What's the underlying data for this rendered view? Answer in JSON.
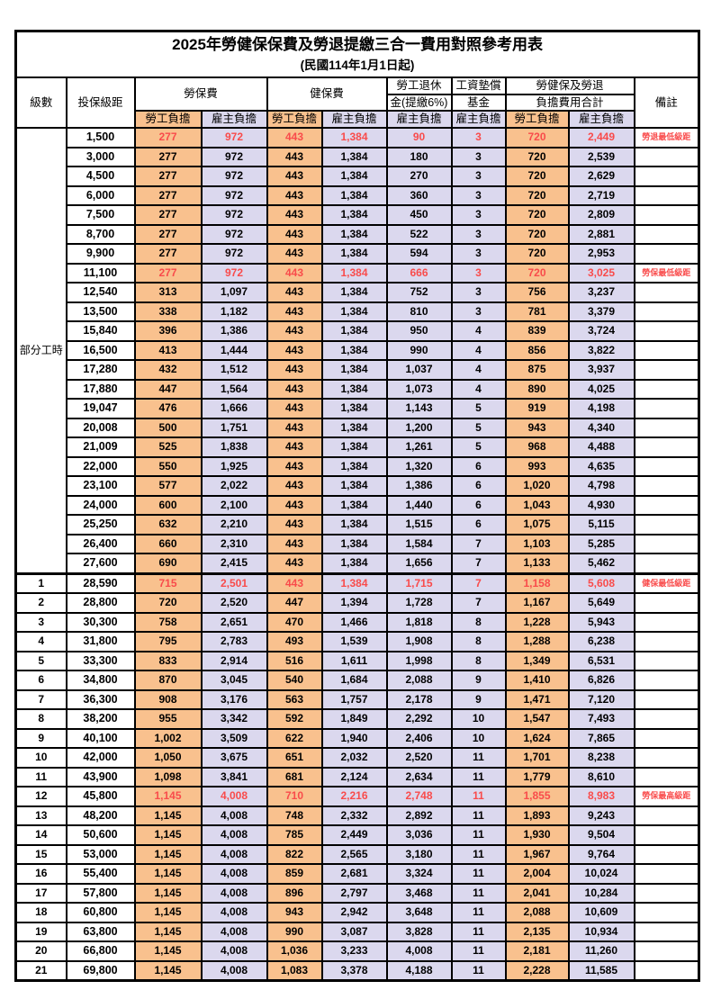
{
  "title": "2025年勞健保保費及勞退提繳三合一費用對照參考用表",
  "subtitle": "(民國114年1月1日起)",
  "header": {
    "level": "級數",
    "salary_bracket": "投保級距",
    "labor_insurance": "勞保費",
    "health_insurance": "健保費",
    "pension_line1": "勞工退休",
    "pension_line2": "金(提繳6%)",
    "wage_fund_line1": "工資墊償",
    "wage_fund_line2": "基金",
    "total_line1": "勞健保及勞退",
    "total_line2": "負擔費用合計",
    "employee_share": "勞工負擔",
    "employer_share": "雇主負擔",
    "remark": "備註"
  },
  "part_time_label": "部分工時",
  "colors": {
    "employee_bg": "#F9C18E",
    "employer_bg": "#DBD8EE",
    "highlight_text": "#F94B4B",
    "border": "#000000"
  },
  "column_keys": [
    "labor-employee",
    "labor-employer",
    "health-employee",
    "health-employer",
    "pension-employer",
    "wagefund-employer",
    "total-employee",
    "total-employer"
  ],
  "rows": [
    {
      "section": "part_time",
      "level": "",
      "salary": "1,500",
      "values": [
        "277",
        "972",
        "443",
        "1,384",
        "90",
        "3",
        "720",
        "2,449"
      ],
      "note": "勞退最低級距",
      "red": true
    },
    {
      "section": "part_time",
      "level": "",
      "salary": "3,000",
      "values": [
        "277",
        "972",
        "443",
        "1,384",
        "180",
        "3",
        "720",
        "2,539"
      ],
      "note": "",
      "red": false
    },
    {
      "section": "part_time",
      "level": "",
      "salary": "4,500",
      "values": [
        "277",
        "972",
        "443",
        "1,384",
        "270",
        "3",
        "720",
        "2,629"
      ],
      "note": "",
      "red": false
    },
    {
      "section": "part_time",
      "level": "",
      "salary": "6,000",
      "values": [
        "277",
        "972",
        "443",
        "1,384",
        "360",
        "3",
        "720",
        "2,719"
      ],
      "note": "",
      "red": false
    },
    {
      "section": "part_time",
      "level": "",
      "salary": "7,500",
      "values": [
        "277",
        "972",
        "443",
        "1,384",
        "450",
        "3",
        "720",
        "2,809"
      ],
      "note": "",
      "red": false
    },
    {
      "section": "part_time",
      "level": "",
      "salary": "8,700",
      "values": [
        "277",
        "972",
        "443",
        "1,384",
        "522",
        "3",
        "720",
        "2,881"
      ],
      "note": "",
      "red": false
    },
    {
      "section": "part_time",
      "level": "",
      "salary": "9,900",
      "values": [
        "277",
        "972",
        "443",
        "1,384",
        "594",
        "3",
        "720",
        "2,953"
      ],
      "note": "",
      "red": false
    },
    {
      "section": "part_time",
      "level": "",
      "salary": "11,100",
      "values": [
        "277",
        "972",
        "443",
        "1,384",
        "666",
        "3",
        "720",
        "3,025"
      ],
      "note": "勞保最低級距",
      "red": true
    },
    {
      "section": "part_time",
      "level": "",
      "salary": "12,540",
      "values": [
        "313",
        "1,097",
        "443",
        "1,384",
        "752",
        "3",
        "756",
        "3,237"
      ],
      "note": "",
      "red": false
    },
    {
      "section": "part_time",
      "level": "",
      "salary": "13,500",
      "values": [
        "338",
        "1,182",
        "443",
        "1,384",
        "810",
        "3",
        "781",
        "3,379"
      ],
      "note": "",
      "red": false
    },
    {
      "section": "part_time",
      "level": "",
      "salary": "15,840",
      "values": [
        "396",
        "1,386",
        "443",
        "1,384",
        "950",
        "4",
        "839",
        "3,724"
      ],
      "note": "",
      "red": false
    },
    {
      "section": "part_time",
      "level": "",
      "salary": "16,500",
      "values": [
        "413",
        "1,444",
        "443",
        "1,384",
        "990",
        "4",
        "856",
        "3,822"
      ],
      "note": "",
      "red": false
    },
    {
      "section": "part_time",
      "level": "",
      "salary": "17,280",
      "values": [
        "432",
        "1,512",
        "443",
        "1,384",
        "1,037",
        "4",
        "875",
        "3,937"
      ],
      "note": "",
      "red": false
    },
    {
      "section": "part_time",
      "level": "",
      "salary": "17,880",
      "values": [
        "447",
        "1,564",
        "443",
        "1,384",
        "1,073",
        "4",
        "890",
        "4,025"
      ],
      "note": "",
      "red": false
    },
    {
      "section": "part_time",
      "level": "",
      "salary": "19,047",
      "values": [
        "476",
        "1,666",
        "443",
        "1,384",
        "1,143",
        "5",
        "919",
        "4,198"
      ],
      "note": "",
      "red": false
    },
    {
      "section": "part_time",
      "level": "",
      "salary": "20,008",
      "values": [
        "500",
        "1,751",
        "443",
        "1,384",
        "1,200",
        "5",
        "943",
        "4,340"
      ],
      "note": "",
      "red": false
    },
    {
      "section": "part_time",
      "level": "",
      "salary": "21,009",
      "values": [
        "525",
        "1,838",
        "443",
        "1,384",
        "1,261",
        "5",
        "968",
        "4,488"
      ],
      "note": "",
      "red": false
    },
    {
      "section": "part_time",
      "level": "",
      "salary": "22,000",
      "values": [
        "550",
        "1,925",
        "443",
        "1,384",
        "1,320",
        "6",
        "993",
        "4,635"
      ],
      "note": "",
      "red": false
    },
    {
      "section": "part_time",
      "level": "",
      "salary": "23,100",
      "values": [
        "577",
        "2,022",
        "443",
        "1,384",
        "1,386",
        "6",
        "1,020",
        "4,798"
      ],
      "note": "",
      "red": false
    },
    {
      "section": "part_time",
      "level": "",
      "salary": "24,000",
      "values": [
        "600",
        "2,100",
        "443",
        "1,384",
        "1,440",
        "6",
        "1,043",
        "4,930"
      ],
      "note": "",
      "red": false
    },
    {
      "section": "part_time",
      "level": "",
      "salary": "25,250",
      "values": [
        "632",
        "2,210",
        "443",
        "1,384",
        "1,515",
        "6",
        "1,075",
        "5,115"
      ],
      "note": "",
      "red": false
    },
    {
      "section": "part_time",
      "level": "",
      "salary": "26,400",
      "values": [
        "660",
        "2,310",
        "443",
        "1,384",
        "1,584",
        "7",
        "1,103",
        "5,285"
      ],
      "note": "",
      "red": false
    },
    {
      "section": "part_time",
      "level": "",
      "salary": "27,600",
      "values": [
        "690",
        "2,415",
        "443",
        "1,384",
        "1,656",
        "7",
        "1,133",
        "5,462"
      ],
      "note": "",
      "red": false
    },
    {
      "section": "levels",
      "level": "1",
      "salary": "28,590",
      "values": [
        "715",
        "2,501",
        "443",
        "1,384",
        "1,715",
        "7",
        "1,158",
        "5,608"
      ],
      "note": "健保最低級距",
      "red": true,
      "sep": true
    },
    {
      "section": "levels",
      "level": "2",
      "salary": "28,800",
      "values": [
        "720",
        "2,520",
        "447",
        "1,394",
        "1,728",
        "7",
        "1,167",
        "5,649"
      ],
      "note": "",
      "red": false
    },
    {
      "section": "levels",
      "level": "3",
      "salary": "30,300",
      "values": [
        "758",
        "2,651",
        "470",
        "1,466",
        "1,818",
        "8",
        "1,228",
        "5,943"
      ],
      "note": "",
      "red": false
    },
    {
      "section": "levels",
      "level": "4",
      "salary": "31,800",
      "values": [
        "795",
        "2,783",
        "493",
        "1,539",
        "1,908",
        "8",
        "1,288",
        "6,238"
      ],
      "note": "",
      "red": false
    },
    {
      "section": "levels",
      "level": "5",
      "salary": "33,300",
      "values": [
        "833",
        "2,914",
        "516",
        "1,611",
        "1,998",
        "8",
        "1,349",
        "6,531"
      ],
      "note": "",
      "red": false
    },
    {
      "section": "levels",
      "level": "6",
      "salary": "34,800",
      "values": [
        "870",
        "3,045",
        "540",
        "1,684",
        "2,088",
        "9",
        "1,410",
        "6,826"
      ],
      "note": "",
      "red": false
    },
    {
      "section": "levels",
      "level": "7",
      "salary": "36,300",
      "values": [
        "908",
        "3,176",
        "563",
        "1,757",
        "2,178",
        "9",
        "1,471",
        "7,120"
      ],
      "note": "",
      "red": false
    },
    {
      "section": "levels",
      "level": "8",
      "salary": "38,200",
      "values": [
        "955",
        "3,342",
        "592",
        "1,849",
        "2,292",
        "10",
        "1,547",
        "7,493"
      ],
      "note": "",
      "red": false
    },
    {
      "section": "levels",
      "level": "9",
      "salary": "40,100",
      "values": [
        "1,002",
        "3,509",
        "622",
        "1,940",
        "2,406",
        "10",
        "1,624",
        "7,865"
      ],
      "note": "",
      "red": false
    },
    {
      "section": "levels",
      "level": "10",
      "salary": "42,000",
      "values": [
        "1,050",
        "3,675",
        "651",
        "2,032",
        "2,520",
        "11",
        "1,701",
        "8,238"
      ],
      "note": "",
      "red": false
    },
    {
      "section": "levels",
      "level": "11",
      "salary": "43,900",
      "values": [
        "1,098",
        "3,841",
        "681",
        "2,124",
        "2,634",
        "11",
        "1,779",
        "8,610"
      ],
      "note": "",
      "red": false
    },
    {
      "section": "levels",
      "level": "12",
      "salary": "45,800",
      "values": [
        "1,145",
        "4,008",
        "710",
        "2,216",
        "2,748",
        "11",
        "1,855",
        "8,983"
      ],
      "note": "勞保最高級距",
      "red": true
    },
    {
      "section": "levels",
      "level": "13",
      "salary": "48,200",
      "values": [
        "1,145",
        "4,008",
        "748",
        "2,332",
        "2,892",
        "11",
        "1,893",
        "9,243"
      ],
      "note": "",
      "red": false
    },
    {
      "section": "levels",
      "level": "14",
      "salary": "50,600",
      "values": [
        "1,145",
        "4,008",
        "785",
        "2,449",
        "3,036",
        "11",
        "1,930",
        "9,504"
      ],
      "note": "",
      "red": false
    },
    {
      "section": "levels",
      "level": "15",
      "salary": "53,000",
      "values": [
        "1,145",
        "4,008",
        "822",
        "2,565",
        "3,180",
        "11",
        "1,967",
        "9,764"
      ],
      "note": "",
      "red": false
    },
    {
      "section": "levels",
      "level": "16",
      "salary": "55,400",
      "values": [
        "1,145",
        "4,008",
        "859",
        "2,681",
        "3,324",
        "11",
        "2,004",
        "10,024"
      ],
      "note": "",
      "red": false
    },
    {
      "section": "levels",
      "level": "17",
      "salary": "57,800",
      "values": [
        "1,145",
        "4,008",
        "896",
        "2,797",
        "3,468",
        "11",
        "2,041",
        "10,284"
      ],
      "note": "",
      "red": false
    },
    {
      "section": "levels",
      "level": "18",
      "salary": "60,800",
      "values": [
        "1,145",
        "4,008",
        "943",
        "2,942",
        "3,648",
        "11",
        "2,088",
        "10,609"
      ],
      "note": "",
      "red": false
    },
    {
      "section": "levels",
      "level": "19",
      "salary": "63,800",
      "values": [
        "1,145",
        "4,008",
        "990",
        "3,087",
        "3,828",
        "11",
        "2,135",
        "10,934"
      ],
      "note": "",
      "red": false
    },
    {
      "section": "levels",
      "level": "20",
      "salary": "66,800",
      "values": [
        "1,145",
        "4,008",
        "1,036",
        "3,233",
        "4,008",
        "11",
        "2,181",
        "11,260"
      ],
      "note": "",
      "red": false
    },
    {
      "section": "levels",
      "level": "21",
      "salary": "69,800",
      "values": [
        "1,145",
        "4,008",
        "1,083",
        "3,378",
        "4,188",
        "11",
        "2,228",
        "11,585"
      ],
      "note": "",
      "red": false
    }
  ]
}
